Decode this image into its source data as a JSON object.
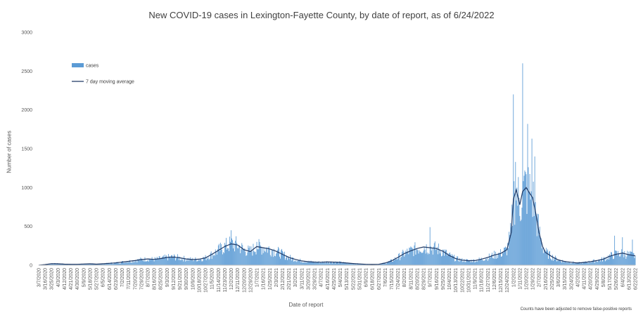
{
  "chart_data": {
    "type": "bar",
    "title": "New COVID-19 cases in Lexington-Fayette County, by date of report, as of 6/24/2022",
    "xlabel": "Date of report",
    "ylabel": "Number of cases",
    "note": "Counts have been adjusted to remove false-positive reports",
    "ylim": [
      0,
      3000
    ],
    "yticks": [
      0,
      500,
      1000,
      1500,
      2000,
      2500,
      3000
    ],
    "grid": false,
    "legend_position": "top-left",
    "colors": {
      "cases": "#5b9bd5",
      "average": "#1f3864"
    },
    "series": [
      {
        "name": "cases",
        "type": "bar"
      },
      {
        "name": "7 day moving average",
        "type": "line"
      }
    ],
    "x_start_date": "3/7/2020",
    "x_end_date": "6/22/2022",
    "x_tick_labels": [
      "3/7/2020",
      "3/16/2020",
      "3/25/2020",
      "4/3/2020",
      "4/12/2020",
      "4/21/2020",
      "4/30/2020",
      "5/9/2020",
      "5/18/2020",
      "5/27/2020",
      "6/5/2020",
      "6/14/2020",
      "6/23/2020",
      "7/2/2020",
      "7/11/2020",
      "7/20/2020",
      "7/29/2020",
      "8/7/2020",
      "8/16/2020",
      "8/25/2020",
      "9/3/2020",
      "9/12/2020",
      "9/21/2020",
      "9/30/2020",
      "10/9/2020",
      "10/18/2020",
      "10/27/2020",
      "11/5/2020",
      "11/14/2020",
      "11/23/2020",
      "12/2/2020",
      "12/11/2020",
      "12/20/2020",
      "12/29/2020",
      "1/7/2021",
      "1/16/2021",
      "1/25/2021",
      "2/3/2021",
      "2/12/2021",
      "2/21/2021",
      "3/2/2021",
      "3/11/2021",
      "3/20/2021",
      "3/29/2021",
      "4/7/2021",
      "4/16/2021",
      "4/25/2021",
      "5/4/2021",
      "5/13/2021",
      "5/22/2021",
      "5/31/2021",
      "6/9/2021",
      "6/18/2021",
      "6/27/2021",
      "7/6/2021",
      "7/15/2021",
      "7/24/2021",
      "8/2/2021",
      "8/11/2021",
      "8/20/2021",
      "8/29/2021",
      "9/7/2021",
      "9/16/2021",
      "9/25/2021",
      "10/4/2021",
      "10/13/2021",
      "10/22/2021",
      "10/31/2021",
      "11/9/2021",
      "11/18/2021",
      "11/27/2021",
      "12/6/2021",
      "12/15/2021",
      "12/24/2021",
      "1/2/2022",
      "1/11/2022",
      "1/20/2022",
      "1/29/2022",
      "2/7/2022",
      "2/16/2022",
      "2/25/2022",
      "3/6/2022",
      "3/15/2022",
      "3/24/2022",
      "4/2/2022",
      "4/11/2022",
      "4/20/2022",
      "4/29/2022",
      "5/8/2022",
      "5/17/2022",
      "5/26/2022",
      "6/4/2022",
      "6/13/2022",
      "6/22/2022"
    ],
    "average_points": [
      [
        "3/7/2020",
        0
      ],
      [
        "3/16/2020",
        8
      ],
      [
        "3/25/2020",
        20
      ],
      [
        "4/3/2020",
        18
      ],
      [
        "4/12/2020",
        14
      ],
      [
        "4/21/2020",
        12
      ],
      [
        "4/30/2020",
        12
      ],
      [
        "5/9/2020",
        15
      ],
      [
        "5/18/2020",
        18
      ],
      [
        "5/27/2020",
        14
      ],
      [
        "6/5/2020",
        18
      ],
      [
        "6/14/2020",
        24
      ],
      [
        "6/23/2020",
        30
      ],
      [
        "7/2/2020",
        40
      ],
      [
        "7/11/2020",
        50
      ],
      [
        "7/20/2020",
        60
      ],
      [
        "7/29/2020",
        72
      ],
      [
        "8/7/2020",
        80
      ],
      [
        "8/16/2020",
        75
      ],
      [
        "8/25/2020",
        85
      ],
      [
        "9/3/2020",
        100
      ],
      [
        "9/12/2020",
        105
      ],
      [
        "9/21/2020",
        95
      ],
      [
        "9/30/2020",
        80
      ],
      [
        "10/9/2020",
        72
      ],
      [
        "10/18/2020",
        78
      ],
      [
        "10/27/2020",
        95
      ],
      [
        "11/5/2020",
        140
      ],
      [
        "11/14/2020",
        190
      ],
      [
        "11/23/2020",
        240
      ],
      [
        "12/2/2020",
        275
      ],
      [
        "12/11/2020",
        260
      ],
      [
        "12/20/2020",
        200
      ],
      [
        "12/29/2020",
        175
      ],
      [
        "1/7/2021",
        240
      ],
      [
        "1/16/2021",
        225
      ],
      [
        "1/25/2021",
        210
      ],
      [
        "2/3/2021",
        180
      ],
      [
        "2/12/2021",
        140
      ],
      [
        "2/21/2021",
        100
      ],
      [
        "3/2/2021",
        75
      ],
      [
        "3/11/2021",
        55
      ],
      [
        "3/20/2021",
        45
      ],
      [
        "3/29/2021",
        40
      ],
      [
        "4/7/2021",
        38
      ],
      [
        "4/16/2021",
        42
      ],
      [
        "4/25/2021",
        40
      ],
      [
        "5/4/2021",
        35
      ],
      [
        "5/13/2021",
        28
      ],
      [
        "5/22/2021",
        22
      ],
      [
        "5/31/2021",
        16
      ],
      [
        "6/9/2021",
        12
      ],
      [
        "6/18/2021",
        10
      ],
      [
        "6/27/2021",
        12
      ],
      [
        "7/6/2021",
        28
      ],
      [
        "7/15/2021",
        55
      ],
      [
        "7/24/2021",
        100
      ],
      [
        "8/2/2021",
        150
      ],
      [
        "8/11/2021",
        185
      ],
      [
        "8/20/2021",
        215
      ],
      [
        "8/29/2021",
        235
      ],
      [
        "9/7/2021",
        225
      ],
      [
        "9/16/2021",
        215
      ],
      [
        "9/25/2021",
        180
      ],
      [
        "10/4/2021",
        125
      ],
      [
        "10/13/2021",
        85
      ],
      [
        "10/22/2021",
        65
      ],
      [
        "10/31/2021",
        58
      ],
      [
        "11/9/2021",
        60
      ],
      [
        "11/18/2021",
        78
      ],
      [
        "11/27/2021",
        100
      ],
      [
        "12/6/2021",
        130
      ],
      [
        "12/15/2021",
        150
      ],
      [
        "12/24/2021",
        200
      ],
      [
        "12/30/2021",
        420
      ],
      [
        "1/2/2022",
        850
      ],
      [
        "1/6/2022",
        970
      ],
      [
        "1/11/2022",
        780
      ],
      [
        "1/15/2022",
        950
      ],
      [
        "1/20/2022",
        1000
      ],
      [
        "1/24/2022",
        940
      ],
      [
        "1/29/2022",
        870
      ],
      [
        "2/3/2022",
        640
      ],
      [
        "2/7/2022",
        420
      ],
      [
        "2/12/2022",
        240
      ],
      [
        "2/16/2022",
        165
      ],
      [
        "2/25/2022",
        110
      ],
      [
        "3/6/2022",
        68
      ],
      [
        "3/15/2022",
        48
      ],
      [
        "3/24/2022",
        38
      ],
      [
        "4/2/2022",
        28
      ],
      [
        "4/11/2022",
        35
      ],
      [
        "4/20/2022",
        45
      ],
      [
        "4/29/2022",
        60
      ],
      [
        "5/8/2022",
        78
      ],
      [
        "5/17/2022",
        115
      ],
      [
        "5/26/2022",
        140
      ],
      [
        "6/4/2022",
        155
      ],
      [
        "6/13/2022",
        135
      ],
      [
        "6/22/2022",
        120
      ]
    ],
    "peak_cases": [
      [
        "1/2/2022",
        2200
      ],
      [
        "1/5/2022",
        1330
      ],
      [
        "1/15/2022",
        2600
      ],
      [
        "1/22/2022",
        1820
      ],
      [
        "1/28/2022",
        1630
      ],
      [
        "2/1/2022",
        1400
      ],
      [
        "12/2/2020",
        450
      ],
      [
        "9/7/2021",
        490
      ],
      [
        "1/7/2021",
        300
      ],
      [
        "5/24/2022",
        380
      ],
      [
        "6/4/2022",
        360
      ],
      [
        "6/18/2022",
        330
      ]
    ]
  }
}
